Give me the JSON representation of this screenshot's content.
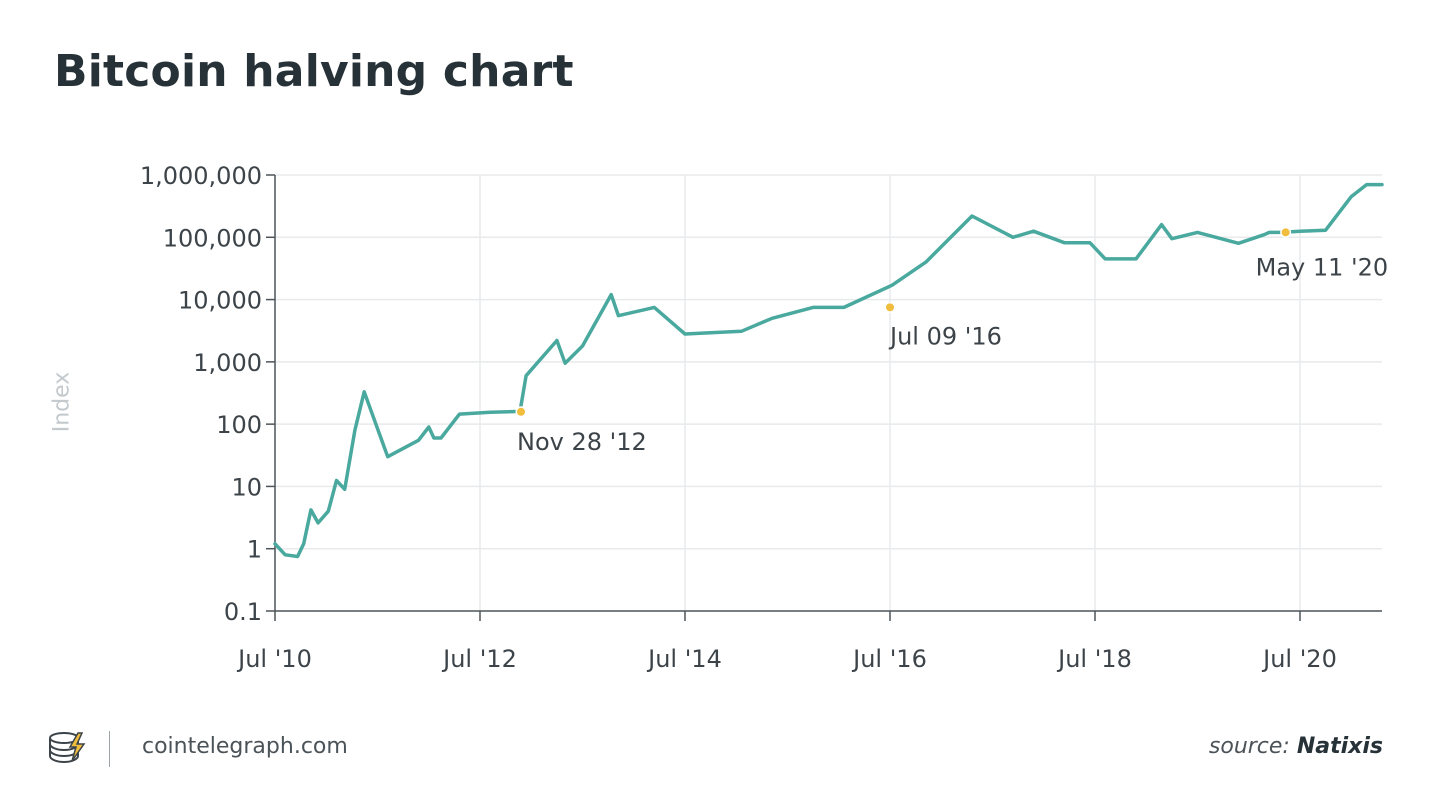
{
  "header": {
    "title": "Bitcoin halving chart"
  },
  "footer": {
    "site": "cointelegraph.com",
    "source_label": "source:",
    "source_name": "Natixis"
  },
  "colors": {
    "line": "#4aa99e",
    "halving_dot": "#f0bd3c",
    "grid": "#e8eaeb",
    "axis": "#4d5459"
  },
  "chart_data": {
    "type": "line",
    "title": "Bitcoin halving chart",
    "xlabel": "",
    "ylabel": "Index",
    "yscale": "log",
    "ylim": [
      0.1,
      1000000
    ],
    "xlim": [
      2010.5,
      2021.3
    ],
    "x_ticks": [
      {
        "value": 2010.5,
        "label": "Jul '10"
      },
      {
        "value": 2012.5,
        "label": "Jul '12"
      },
      {
        "value": 2014.5,
        "label": "Jul '14"
      },
      {
        "value": 2016.5,
        "label": "Jul '16"
      },
      {
        "value": 2018.5,
        "label": "Jul '18"
      },
      {
        "value": 2020.5,
        "label": "Jul '20"
      }
    ],
    "y_ticks": [
      {
        "value": 0.1,
        "label": "0.1"
      },
      {
        "value": 1,
        "label": "1"
      },
      {
        "value": 10,
        "label": "10"
      },
      {
        "value": 100,
        "label": "100"
      },
      {
        "value": 1000,
        "label": "1,000"
      },
      {
        "value": 10000,
        "label": "10,000"
      },
      {
        "value": 100000,
        "label": "100,000"
      },
      {
        "value": 1000000,
        "label": "1,000,000"
      }
    ],
    "series": [
      {
        "name": "Index",
        "x": [
          2010.5,
          2010.6,
          2010.72,
          2010.78,
          2010.85,
          2010.92,
          2011.02,
          2011.1,
          2011.18,
          2011.28,
          2011.37,
          2011.6,
          2011.9,
          2012.0,
          2012.05,
          2012.12,
          2012.3,
          2012.6,
          2012.89,
          2012.95,
          2013.25,
          2013.33,
          2013.5,
          2013.78,
          2013.85,
          2014.2,
          2014.5,
          2015.05,
          2015.35,
          2015.75,
          2016.05,
          2016.52,
          2016.85,
          2017.3,
          2017.7,
          2017.9,
          2018.2,
          2018.45,
          2018.6,
          2018.9,
          2019.15,
          2019.25,
          2019.5,
          2019.9,
          2020.15,
          2020.2,
          2020.32,
          2020.5,
          2020.75,
          2021.0,
          2021.15,
          2021.3
        ],
        "y": [
          1.2,
          0.8,
          0.75,
          1.2,
          4.2,
          2.6,
          4.0,
          12.5,
          9.0,
          80,
          330,
          30,
          55,
          90,
          60,
          60,
          145,
          155,
          160,
          600,
          2200,
          950,
          1800,
          12000,
          5500,
          7500,
          2800,
          3100,
          5000,
          7500,
          7500,
          17000,
          40000,
          220000,
          100000,
          125000,
          82000,
          82000,
          45000,
          45000,
          160000,
          95000,
          120000,
          80000,
          110000,
          120000,
          120000,
          125000,
          130000,
          450000,
          700000,
          700000
        ]
      }
    ],
    "annotations": [
      {
        "label": "Nov 28 '12",
        "x": 2012.9,
        "y": 158
      },
      {
        "label": "Jul 09 '16",
        "x": 2016.5,
        "y": 7500
      },
      {
        "label": "May 11 '20",
        "x": 2020.36,
        "y": 120000
      }
    ]
  }
}
